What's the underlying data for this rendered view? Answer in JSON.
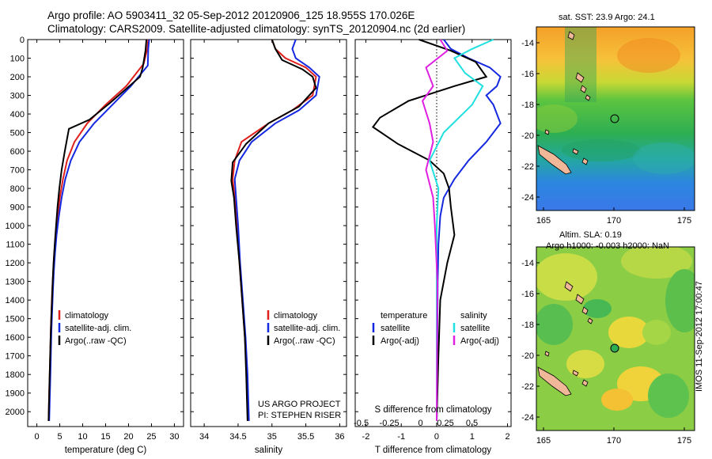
{
  "header": {
    "line1": "Argo profile: AO 5903411_32 05-Sep-2012 20120906_125 18.955S 170.026E",
    "line2": "Climatology: CARS2009. Satellite-adjusted climatology: synTS_20120904.nc (2d earlier)"
  },
  "project": {
    "line1": "US ARGO PROJECT",
    "line2": "PI: STEPHEN RISER"
  },
  "colors": {
    "climatology": "#e0201c",
    "satellite": "#1428e0",
    "argo": "#000000",
    "argo_salinity_diff": "#e020e0",
    "satellite_salinity_diff": "#20e0e0"
  },
  "maps": {
    "sst_title": "sat. SST: 23.9 Argo: 24.1",
    "sla_title1": "Altim. SLA: 0.19",
    "sla_title2": "Argo h1000: -0.003 h2000: NaN",
    "stamp": "IMOS 11-Sep-2012 17:00:47",
    "lat_ticks": [
      "-14",
      "-16",
      "-18",
      "-20",
      "-22",
      "-24"
    ],
    "lon_ticks": [
      "165",
      "170",
      "175"
    ],
    "argo_position": {
      "lon": 170.026,
      "lat": -18.955
    }
  },
  "chart_data": [
    {
      "type": "line",
      "xlabel": "temperature (deg C)",
      "ylabel": "",
      "xlim": [
        -2,
        32
      ],
      "ylim": [
        2080,
        0
      ],
      "xticks": [
        "0",
        "5",
        "10",
        "15",
        "20",
        "25",
        "30"
      ],
      "yticks": [
        "0",
        "100",
        "200",
        "300",
        "400",
        "500",
        "600",
        "700",
        "800",
        "900",
        "1000",
        "1100",
        "1200",
        "1300",
        "1400",
        "1500",
        "1600",
        "1700",
        "1800",
        "1900",
        "2000"
      ],
      "legend": {
        "position": "lower-left",
        "entries": [
          "climatology",
          "satellite-adj. clim.",
          "Argo(..raw -QC)"
        ]
      },
      "series": [
        {
          "name": "climatology",
          "color": "#e0201c",
          "x": [
            24.3,
            24.1,
            23.3,
            19.5,
            15,
            11,
            8.2,
            6.6,
            5.7,
            5,
            4.5,
            4.1,
            3.8,
            3.55,
            3.35,
            3.2,
            3.05,
            2.95,
            2.85,
            2.75,
            2.65,
            2.55
          ],
          "y": [
            0,
            50,
            130,
            250,
            350,
            450,
            550,
            650,
            750,
            850,
            950,
            1050,
            1150,
            1250,
            1350,
            1450,
            1550,
            1650,
            1750,
            1850,
            1950,
            2050
          ]
        },
        {
          "name": "satellite-adj. clim.",
          "color": "#1428e0",
          "x": [
            24.5,
            24.3,
            24.2,
            20.5,
            16.5,
            12.5,
            9.3,
            7.4,
            6.2,
            5.4,
            4.8,
            4.3,
            3.95,
            3.7,
            3.5,
            3.35,
            3.2,
            3.1,
            3.0,
            2.9,
            2.8,
            2.7
          ],
          "y": [
            0,
            50,
            140,
            250,
            350,
            450,
            550,
            650,
            750,
            850,
            950,
            1050,
            1150,
            1250,
            1350,
            1450,
            1550,
            1650,
            1750,
            1850,
            1950,
            2050
          ]
        },
        {
          "name": "Argo(..raw -QC)",
          "color": "#000000",
          "x": [
            23.9,
            23.7,
            23.1,
            22.5,
            16,
            11.5,
            7,
            6.1,
            5.4,
            4.9,
            4.5,
            4.2,
            3.9,
            3.65,
            3.45,
            3.3,
            3.15,
            3.0,
            2.9,
            2.8,
            2.7,
            2.55
          ],
          "y": [
            0,
            60,
            150,
            200,
            340,
            430,
            480,
            600,
            700,
            800,
            900,
            1000,
            1100,
            1200,
            1300,
            1400,
            1500,
            1600,
            1700,
            1800,
            1900,
            2050
          ]
        }
      ]
    },
    {
      "type": "line",
      "xlabel": "salinity",
      "ylabel": "",
      "xlim": [
        33.8,
        36.1
      ],
      "ylim": [
        2080,
        0
      ],
      "xticks": [
        "34",
        "34.5",
        "35",
        "35.5",
        "36"
      ],
      "yticks": [],
      "legend": {
        "position": "lower-left",
        "entries": [
          "climatology",
          "satellite-adj. clim.",
          "Argo(..raw -QC)"
        ]
      },
      "series": [
        {
          "name": "climatology",
          "color": "#e0201c",
          "x": [
            35.0,
            35.05,
            35.2,
            35.5,
            35.65,
            35.6,
            35.3,
            34.95,
            34.55,
            34.45,
            34.42,
            34.45,
            34.48,
            34.52,
            34.56,
            34.6,
            34.63,
            34.65
          ],
          "y": [
            0,
            50,
            100,
            150,
            200,
            300,
            380,
            450,
            550,
            650,
            750,
            850,
            1000,
            1200,
            1400,
            1600,
            1800,
            2050
          ]
        },
        {
          "name": "satellite-adj. clim.",
          "color": "#1428e0",
          "x": [
            35.35,
            35.3,
            35.35,
            35.55,
            35.7,
            35.65,
            35.4,
            35.05,
            34.7,
            34.52,
            34.45,
            34.47,
            34.5,
            34.53,
            34.57,
            34.61,
            34.64,
            34.66
          ],
          "y": [
            0,
            50,
            100,
            150,
            200,
            300,
            380,
            450,
            550,
            650,
            750,
            850,
            1000,
            1200,
            1400,
            1600,
            1800,
            2050
          ]
        },
        {
          "name": "Argo(..raw -QC)",
          "color": "#000000",
          "x": [
            35.0,
            35.05,
            35.15,
            35.45,
            35.6,
            35.65,
            35.4,
            34.95,
            34.62,
            34.42,
            34.4,
            34.44,
            34.47,
            34.52,
            34.56,
            34.6,
            34.62,
            34.64
          ],
          "y": [
            0,
            50,
            110,
            160,
            200,
            260,
            360,
            450,
            560,
            660,
            760,
            850,
            1000,
            1200,
            1400,
            1600,
            1800,
            2050
          ]
        }
      ]
    },
    {
      "type": "line",
      "xlabel": "T difference from climatology",
      "xlabel_top": "S difference from climatology",
      "ylabel": "",
      "xlim": [
        -2.3,
        2.1
      ],
      "ylim": [
        2080,
        0
      ],
      "xticks": [
        "-2",
        "-1",
        "0",
        "1",
        "2"
      ],
      "xticks_top": [
        "-0.5",
        "-0.25",
        "0",
        "0.25",
        "0.5"
      ],
      "legend": {
        "position": "lower-center",
        "temperature_heading": "temperature",
        "salinity_heading": "salinity",
        "entries": [
          "satellite",
          "Argo(-adj)",
          "satellite",
          "Argo(-adj)"
        ]
      },
      "series": [
        {
          "name": "satellite",
          "group": "temperature",
          "color": "#1428e0",
          "x": [
            0.2,
            0.4,
            0.9,
            1.5,
            1.8,
            1.7,
            1.4,
            1.6,
            1.8,
            1.4,
            0.9,
            0.5,
            0.2,
            0.1,
            0.05,
            0.03,
            0.02,
            0.01,
            0
          ],
          "y": [
            0,
            50,
            100,
            150,
            200,
            250,
            300,
            350,
            450,
            550,
            650,
            750,
            850,
            950,
            1100,
            1300,
            1600,
            1900,
            2050
          ]
        },
        {
          "name": "Argo(-adj)",
          "group": "temperature",
          "color": "#000000",
          "x": [
            -0.5,
            0.4,
            1.1,
            1.4,
            0.5,
            -0.8,
            -1.6,
            -1.8,
            -1.1,
            -0.2,
            0.2,
            0.35,
            0.4,
            0.5,
            0.3,
            0.1,
            0.05,
            0
          ],
          "y": [
            0,
            60,
            120,
            200,
            250,
            330,
            420,
            470,
            560,
            650,
            720,
            800,
            900,
            1050,
            1200,
            1400,
            1700,
            2050
          ]
        },
        {
          "name": "satellite",
          "group": "salinity",
          "color": "#20e0e0",
          "x": [
            1.6,
            1.0,
            0.5,
            0.8,
            1.3,
            1.0,
            0.2,
            -0.2,
            0.05,
            0.0,
            0,
            0,
            0
          ],
          "y": [
            0,
            50,
            100,
            180,
            250,
            350,
            500,
            650,
            800,
            1000,
            1400,
            1800,
            2050
          ]
        },
        {
          "name": "Argo(-adj)",
          "group": "salinity",
          "color": "#e020e0",
          "x": [
            0.1,
            0.3,
            -0.3,
            -0.1,
            -0.4,
            -0.2,
            -0.1,
            -0.3,
            -0.1,
            -0.05,
            0.02,
            0
          ],
          "y": [
            0,
            60,
            150,
            250,
            330,
            450,
            550,
            700,
            850,
            1000,
            1300,
            2050
          ]
        }
      ]
    }
  ]
}
